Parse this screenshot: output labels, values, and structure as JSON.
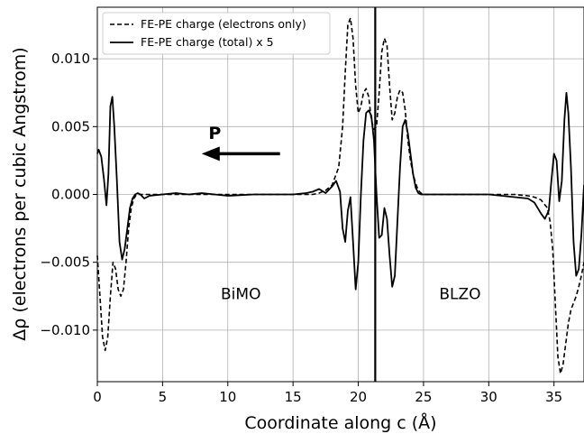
{
  "chart_data": {
    "type": "line",
    "xlabel": "Coordinate along c (Å)",
    "ylabel": "Δρ (electrons per cubic Angstrom)",
    "xlim": [
      0,
      37.3
    ],
    "ylim": [
      -0.0138,
      0.0138
    ],
    "xticks": [
      0,
      5,
      10,
      15,
      20,
      25,
      30,
      35
    ],
    "xtick_labels": [
      "0",
      "5",
      "10",
      "15",
      "20",
      "25",
      "30",
      "35"
    ],
    "yticks": [
      -0.01,
      -0.005,
      0.0,
      0.005,
      0.01
    ],
    "ytick_labels": [
      "−0.010",
      "−0.005",
      "0.000",
      "0.005",
      "0.010"
    ],
    "grid": true,
    "legend_position": "top-left",
    "series": [
      {
        "name": "FE-PE charge (electrons only)",
        "style": "dashed",
        "color": "#000000",
        "x": [
          0,
          0.2,
          0.4,
          0.6,
          0.8,
          1.0,
          1.2,
          1.4,
          1.6,
          1.8,
          2.0,
          2.2,
          2.4,
          2.6,
          2.8,
          3.0,
          3.5,
          4,
          6,
          8,
          10,
          12,
          14,
          15,
          16,
          16.5,
          17,
          17.5,
          18.0,
          18.5,
          18.8,
          19.0,
          19.2,
          19.4,
          19.6,
          19.8,
          20.0,
          20.2,
          20.4,
          20.6,
          20.8,
          21.0,
          21.2,
          21.4,
          21.6,
          21.8,
          22.0,
          22.2,
          22.4,
          22.6,
          22.8,
          23.0,
          23.2,
          23.4,
          23.6,
          23.8,
          24.0,
          24.2,
          24.4,
          24.6,
          24.8,
          25.0,
          25.5,
          26,
          28,
          30,
          32,
          33,
          33.5,
          34.0,
          34.5,
          34.7,
          34.9,
          35.1,
          35.3,
          35.5,
          35.7,
          35.9,
          36.1,
          36.3,
          36.5,
          36.7,
          36.9,
          37.1,
          37.3
        ],
        "y": [
          -0.0045,
          -0.0075,
          -0.0105,
          -0.0115,
          -0.0105,
          -0.0075,
          -0.005,
          -0.0055,
          -0.007,
          -0.0075,
          -0.007,
          -0.005,
          -0.0025,
          -0.001,
          -0.0003,
          0.0,
          0.0,
          0.0,
          0.0,
          0.0,
          0.0,
          0.0,
          0.0,
          0.0,
          0.0,
          0.0,
          0.0001,
          0.0003,
          0.0007,
          0.002,
          0.005,
          0.009,
          0.0125,
          0.013,
          0.0115,
          0.008,
          0.006,
          0.0065,
          0.0075,
          0.0078,
          0.0072,
          0.0055,
          0.0048,
          0.005,
          0.0075,
          0.0105,
          0.0115,
          0.011,
          0.008,
          0.0055,
          0.006,
          0.0072,
          0.0077,
          0.0075,
          0.0062,
          0.004,
          0.0025,
          0.0015,
          0.0008,
          0.0003,
          0.0001,
          0.0,
          0.0,
          0.0,
          0.0,
          0.0,
          0.0,
          -0.0001,
          -0.0002,
          -0.0004,
          -0.001,
          -0.002,
          -0.004,
          -0.008,
          -0.012,
          -0.0132,
          -0.0125,
          -0.011,
          -0.0095,
          -0.0085,
          -0.008,
          -0.0075,
          -0.0068,
          -0.006,
          -0.005
        ]
      },
      {
        "name": "FE-PE charge (total) x 5",
        "style": "solid",
        "color": "#000000",
        "x": [
          0,
          0.1,
          0.3,
          0.5,
          0.7,
          0.85,
          1.0,
          1.15,
          1.3,
          1.5,
          1.7,
          1.9,
          2.1,
          2.3,
          2.5,
          2.7,
          2.9,
          3.1,
          3.3,
          3.6,
          4,
          5,
          6,
          7,
          8,
          9,
          10,
          12,
          14,
          15,
          16,
          16.5,
          17,
          17.5,
          18.0,
          18.3,
          18.6,
          18.8,
          19.0,
          19.2,
          19.4,
          19.6,
          19.8,
          20.0,
          20.2,
          20.4,
          20.6,
          20.8,
          21.0,
          21.2,
          21.4,
          21.6,
          21.8,
          22.0,
          22.2,
          22.4,
          22.6,
          22.8,
          23.0,
          23.2,
          23.4,
          23.6,
          23.8,
          24.0,
          24.2,
          24.4,
          24.6,
          24.8,
          25.0,
          25.5,
          26,
          28,
          30,
          32,
          33,
          33.5,
          34.0,
          34.3,
          34.6,
          34.8,
          35.0,
          35.2,
          35.4,
          35.6,
          35.8,
          35.95,
          36.1,
          36.3,
          36.5,
          36.7,
          36.9,
          37.1,
          37.3
        ],
        "y": [
          0.003,
          0.0033,
          0.0028,
          0.0012,
          -0.0008,
          0.0015,
          0.0065,
          0.0072,
          0.005,
          0.001,
          -0.0035,
          -0.0048,
          -0.004,
          -0.0025,
          -0.001,
          -0.0003,
          0.0,
          0.0001,
          0.0,
          -0.0003,
          -0.0001,
          0.0,
          0.0001,
          0.0,
          0.0001,
          0.0,
          -0.0001,
          0.0,
          0.0,
          0.0,
          0.0001,
          0.0002,
          0.0004,
          0.0001,
          0.0006,
          0.001,
          0.0002,
          -0.0025,
          -0.0035,
          -0.0012,
          -0.0002,
          -0.0035,
          -0.007,
          -0.005,
          0.0,
          0.004,
          0.006,
          0.0062,
          0.0058,
          0.004,
          0.0,
          -0.0032,
          -0.003,
          -0.001,
          -0.0018,
          -0.0045,
          -0.0068,
          -0.006,
          -0.002,
          0.002,
          0.005,
          0.0055,
          0.0045,
          0.003,
          0.0015,
          0.0005,
          0.0001,
          0.0,
          0.0,
          0.0,
          0.0,
          0.0,
          0.0,
          -0.0002,
          -0.0003,
          -0.0006,
          -0.0014,
          -0.0018,
          -0.0012,
          0.001,
          0.003,
          0.0025,
          -0.0005,
          0.001,
          0.0055,
          0.0075,
          0.006,
          0.002,
          -0.0035,
          -0.006,
          -0.0055,
          -0.003,
          0.0007
        ]
      }
    ],
    "vertical_lines": [
      21.3
    ],
    "annotations": [
      {
        "text": "BiMO",
        "x": 11.0,
        "y": -0.0077
      },
      {
        "text": "BLZO",
        "x": 27.8,
        "y": -0.0077
      },
      {
        "text": "P",
        "x": 9.0,
        "y": 0.0041
      }
    ],
    "arrow": {
      "from": [
        14.0,
        0.003
      ],
      "to": [
        8.0,
        0.003
      ],
      "label": "P"
    }
  }
}
